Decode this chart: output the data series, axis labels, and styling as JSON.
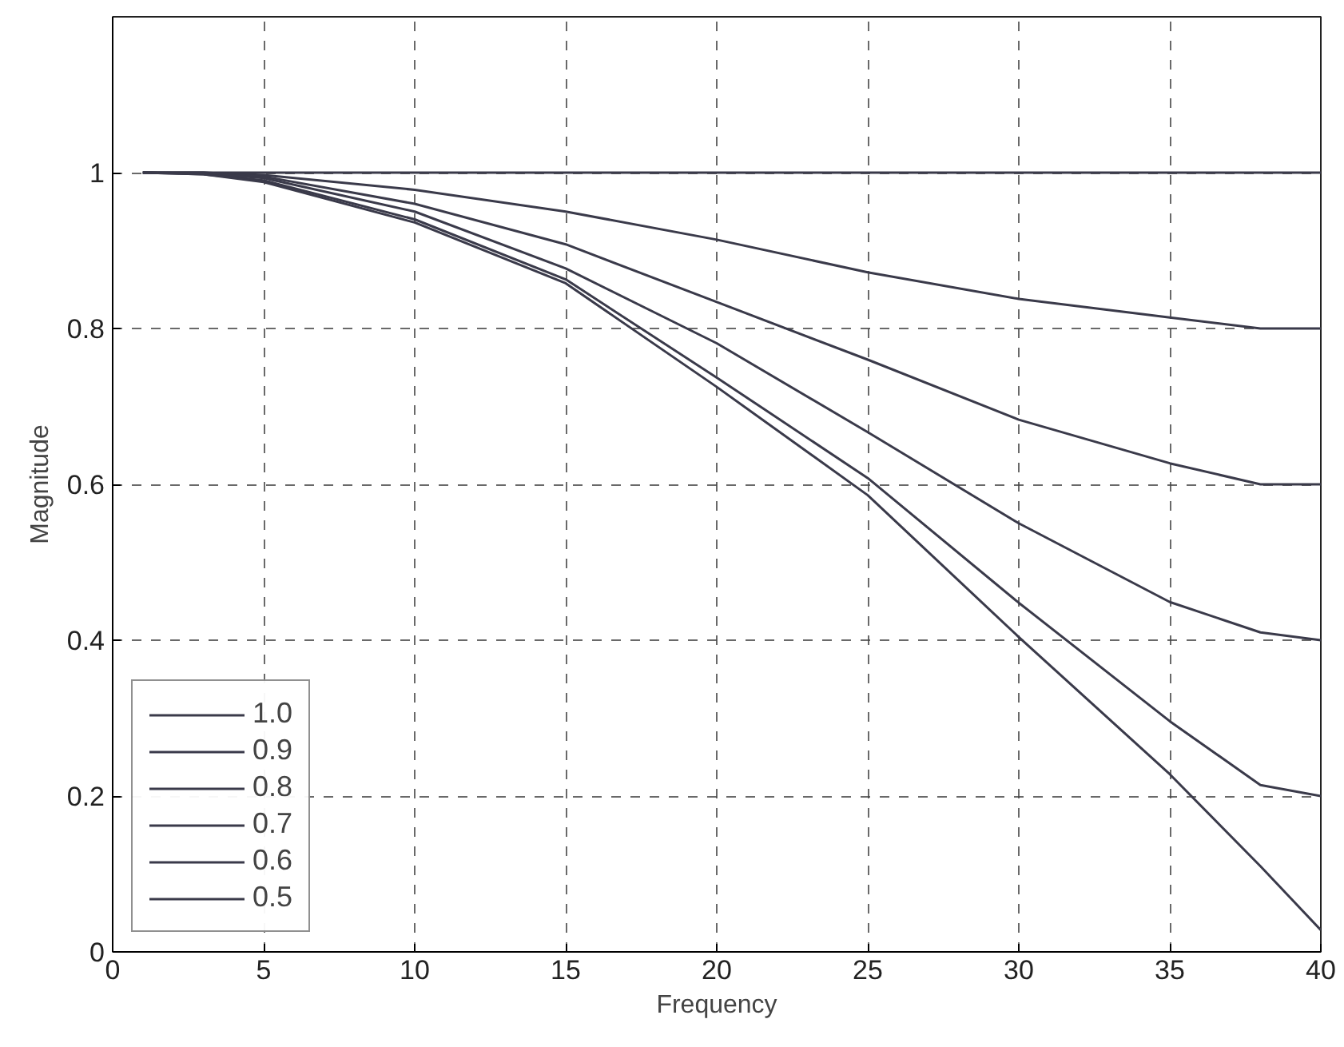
{
  "chart_data": {
    "type": "line",
    "xlabel": "Frequency",
    "ylabel": "Magnitude",
    "x": [
      1,
      3,
      5,
      10,
      15,
      20,
      25,
      30,
      35,
      38,
      40
    ],
    "series": [
      {
        "name": "1.0",
        "color": "#3a3a4a",
        "values": [
          1,
          1,
          1,
          1,
          1,
          1,
          1,
          1,
          1,
          1,
          1
        ]
      },
      {
        "name": "0.9",
        "color": "#3a3a4a",
        "values": [
          1,
          1,
          0.997,
          0.978,
          0.95,
          0.914,
          0.872,
          0.838,
          0.814,
          0.8,
          0.8
        ]
      },
      {
        "name": "0.8",
        "color": "#3a3a4a",
        "values": [
          1,
          1,
          0.995,
          0.96,
          0.908,
          0.834,
          0.76,
          0.683,
          0.627,
          0.6,
          0.6
        ]
      },
      {
        "name": "0.7",
        "color": "#3a3a4a",
        "values": [
          1,
          0.999,
          0.993,
          0.95,
          0.877,
          0.781,
          0.667,
          0.55,
          0.449,
          0.41,
          0.4
        ]
      },
      {
        "name": "0.6",
        "color": "#3a3a4a",
        "values": [
          1,
          0.998,
          0.99,
          0.94,
          0.863,
          0.737,
          0.608,
          0.448,
          0.296,
          0.214,
          0.2
        ]
      },
      {
        "name": "0.5",
        "color": "#3a3a4a",
        "values": [
          1,
          0.998,
          0.988,
          0.936,
          0.858,
          0.725,
          0.586,
          0.404,
          0.228,
          0.11,
          0.028
        ]
      }
    ],
    "xlim": [
      0,
      40
    ],
    "ylim": [
      0,
      1.2
    ],
    "xticks": [
      0,
      5,
      10,
      15,
      20,
      25,
      30,
      35,
      40
    ],
    "yticks": [
      0,
      0.2,
      0.4,
      0.6,
      0.8,
      1
    ],
    "grid": true,
    "legend": "bottom left",
    "line_style": "solid",
    "marker": "none"
  }
}
